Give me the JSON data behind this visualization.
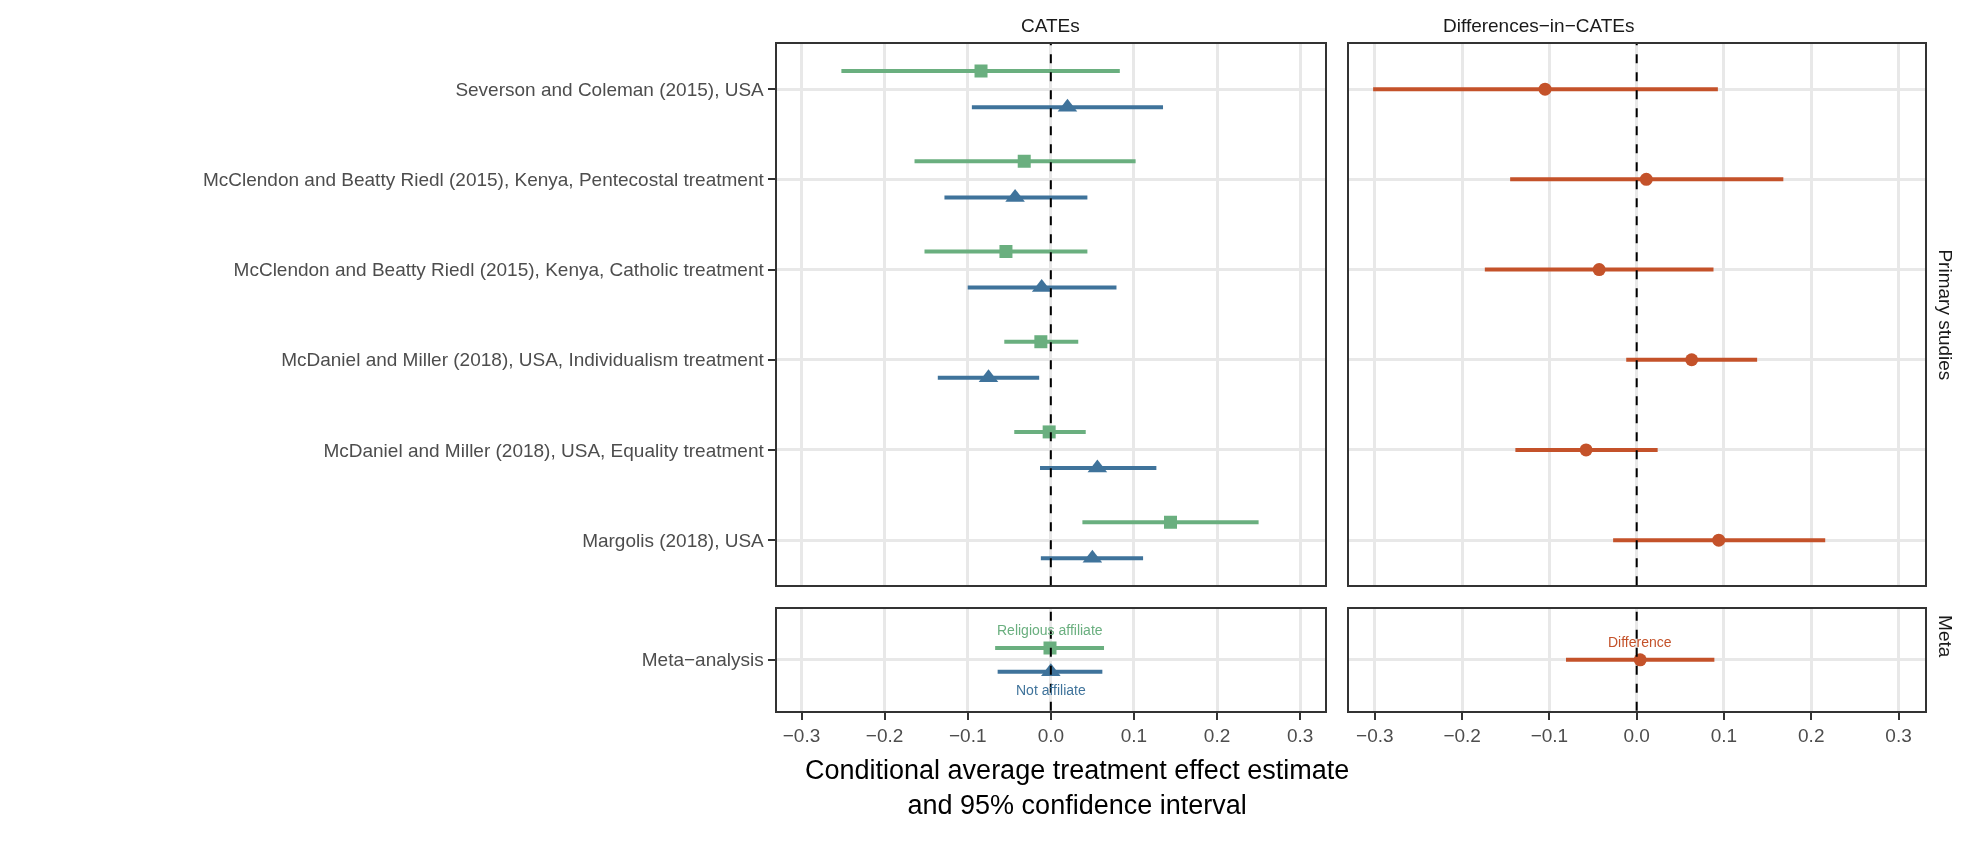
{
  "chart_data": [
    {
      "type": "scatter",
      "orientation": "horizontal",
      "title": "CATEs",
      "categories": [
        "Severson and Coleman (2015), USA",
        "McClendon and Beatty Riedl (2015), Kenya, Pentecostal treatment",
        "McClendon and Beatty Riedl (2015), Kenya, Catholic treatment",
        "McDaniel and Miller (2018), USA, Individualism treatment",
        "McDaniel and Miller (2018), USA, Equality treatment",
        "Margolis (2018), USA"
      ],
      "series": [
        {
          "color": "#6aaf7f",
          "marker": "square",
          "values": [
            -0.084,
            -0.032,
            -0.054,
            -0.012,
            -0.002,
            0.144
          ],
          "errors": [
            [
              -0.252,
              0.083
            ],
            [
              -0.164,
              0.102
            ],
            [
              -0.152,
              0.044
            ],
            [
              -0.056,
              0.033
            ],
            [
              -0.044,
              0.042
            ],
            [
              0.038,
              0.25
            ]
          ]
        },
        {
          "color": "#3f739b",
          "marker": "triangle",
          "values": [
            0.02,
            -0.043,
            -0.011,
            -0.075,
            0.056,
            0.05
          ],
          "errors": [
            [
              -0.095,
              0.135
            ],
            [
              -0.128,
              0.044
            ],
            [
              -0.1,
              0.079
            ],
            [
              -0.136,
              -0.014
            ],
            [
              -0.013,
              0.127
            ],
            [
              -0.012,
              0.111
            ]
          ]
        }
      ],
      "xlim": [
        -0.33,
        0.33
      ],
      "xticks": [
        -0.3,
        -0.2,
        -0.1,
        0,
        0.1,
        0.2,
        0.3
      ],
      "ref_lines": [
        {
          "axis": "x",
          "value": 0,
          "color": "#000000",
          "line_style": "dashed"
        }
      ],
      "grid": true,
      "tick_labels": "y"
    },
    {
      "type": "scatter",
      "orientation": "horizontal",
      "title": "Differences−in−CATEs",
      "y2label": "Primary studies",
      "categories": [
        null,
        null,
        null,
        null,
        null,
        null
      ],
      "series": [
        {
          "color": "#c4522a",
          "marker": "circle",
          "values": [
            -0.105,
            0.011,
            -0.043,
            0.063,
            -0.058,
            0.094
          ],
          "errors": [
            [
              -0.302,
              0.093
            ],
            [
              -0.145,
              0.168
            ],
            [
              -0.174,
              0.088
            ],
            [
              -0.012,
              0.138
            ],
            [
              -0.139,
              0.024
            ],
            [
              -0.027,
              0.216
            ]
          ]
        }
      ],
      "xlim": [
        -0.33,
        0.33
      ],
      "xticks": [
        -0.3,
        -0.2,
        -0.1,
        0,
        0.1,
        0.2,
        0.3
      ],
      "ref_lines": [
        {
          "axis": "x",
          "value": 0,
          "color": "#000000",
          "line_style": "dashed"
        }
      ],
      "grid": true,
      "tick_labels": false
    },
    {
      "type": "scatter",
      "orientation": "horizontal",
      "categories": [
        "Meta−analysis"
      ],
      "series": [
        {
          "name": "Religious affiliate",
          "color": "#6aaf7f",
          "marker": "square",
          "values": [
            -0.001
          ],
          "errors": [
            [
              -0.067,
              0.064
            ]
          ]
        },
        {
          "name": "Not affiliate",
          "color": "#3f739b",
          "marker": "triangle",
          "values": [
            0.0
          ],
          "errors": [
            [
              -0.064,
              0.062
            ]
          ]
        }
      ],
      "xlim": [
        -0.33,
        0.33
      ],
      "xticks": [
        -0.3,
        -0.2,
        -0.1,
        {
          "value": 0,
          "label": "0.0"
        },
        0.1,
        0.2,
        0.3
      ],
      "ref_lines": [
        {
          "axis": "x",
          "value": 0,
          "color": "#000000",
          "line_style": "dashed"
        }
      ],
      "grid": true
    },
    {
      "type": "scatter",
      "orientation": "horizontal",
      "xlabel": "Conditional average treatment effect estimate\nand 95% confidence interval",
      "y2label": "Meta",
      "categories": [
        null
      ],
      "series": [
        {
          "name": "Difference",
          "color": "#c4522a",
          "marker": "circle",
          "values": [
            0.004
          ],
          "errors": [
            [
              -0.081,
              0.089
            ]
          ]
        }
      ],
      "xlim": [
        -0.33,
        0.33
      ],
      "xticks": [
        -0.3,
        -0.2,
        -0.1,
        {
          "value": 0,
          "label": "0.0"
        },
        0.1,
        0.2,
        0.3
      ],
      "ref_lines": [
        {
          "axis": "x",
          "value": 0,
          "color": "#000000",
          "line_style": "dashed"
        }
      ],
      "grid": true,
      "tick_labels": "x"
    }
  ]
}
